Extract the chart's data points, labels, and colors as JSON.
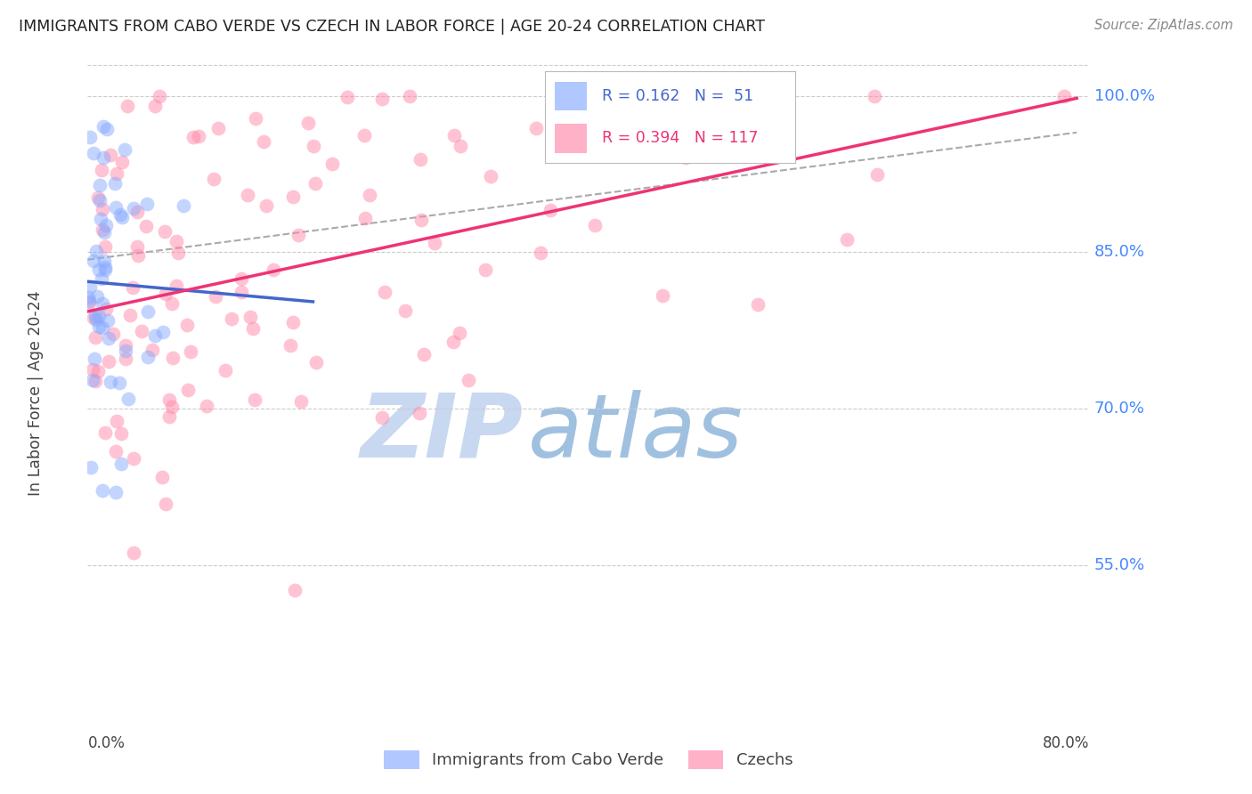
{
  "title": "IMMIGRANTS FROM CABO VERDE VS CZECH IN LABOR FORCE | AGE 20-24 CORRELATION CHART",
  "source": "Source: ZipAtlas.com",
  "ylabel": "In Labor Force | Age 20-24",
  "xmin": 0.0,
  "xmax": 0.08,
  "ymin": 0.395,
  "ymax": 1.035,
  "ytick_vals": [
    0.55,
    0.7,
    0.85,
    1.0
  ],
  "ytick_labels": [
    "55.0%",
    "70.0%",
    "85.0%",
    "100.0%"
  ],
  "grid_color": "#cccccc",
  "blue_color": "#88aaff",
  "pink_color": "#ff88aa",
  "blue_label": "Immigrants from Cabo Verde",
  "pink_label": "Czechs",
  "r_blue": 0.162,
  "n_blue": 51,
  "r_pink": 0.394,
  "n_pink": 117,
  "blue_line_color": "#4466cc",
  "pink_line_color": "#ee3377",
  "dash_line_color": "#aaaaaa",
  "watermark_zip": "ZIP",
  "watermark_atlas": "atlas",
  "watermark_color_zip": "#c8d8f0",
  "watermark_color_atlas": "#90b8e0",
  "title_color": "#222222",
  "source_color": "#888888",
  "label_color": "#444444",
  "right_axis_color": "#4488ff",
  "legend_blue_color": "#4466cc",
  "legend_pink_color": "#ee3377"
}
